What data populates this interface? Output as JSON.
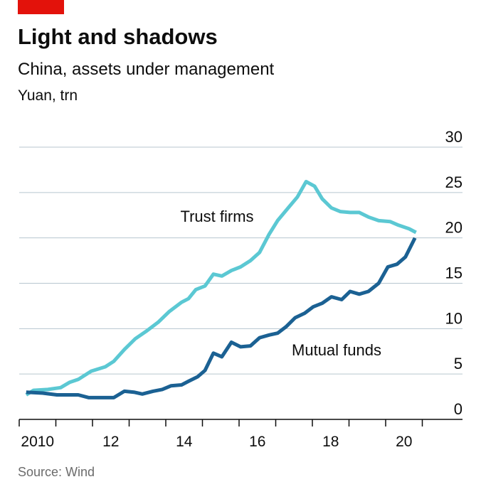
{
  "chart_data": {
    "type": "line",
    "title": "Light and shadows",
    "subtitle": "China, assets under management",
    "unit_label": "Yuan, trn",
    "source": "Source: Wind",
    "xlim": [
      2010,
      2022
    ],
    "xticks": [
      {
        "value": 2010,
        "label": "2010"
      },
      {
        "value": 2012,
        "label": "12"
      },
      {
        "value": 2014,
        "label": "14"
      },
      {
        "value": 2016,
        "label": "16"
      },
      {
        "value": 2018,
        "label": "18"
      },
      {
        "value": 2020,
        "label": "20"
      }
    ],
    "xminor_ticks": [
      2011,
      2013,
      2015,
      2017,
      2019,
      2021
    ],
    "ylim": [
      0,
      30
    ],
    "yticks": [
      0,
      5,
      10,
      15,
      20,
      25,
      30
    ],
    "grid": true,
    "series": [
      {
        "name": "Trust firms",
        "color": "#5bc8d3",
        "x": [
          2010.19,
          2010.39,
          2010.78,
          2011.13,
          2011.38,
          2011.61,
          2011.96,
          2012.35,
          2012.58,
          2012.87,
          2013.17,
          2013.46,
          2013.79,
          2014.1,
          2014.43,
          2014.62,
          2014.82,
          2015.07,
          2015.3,
          2015.53,
          2015.79,
          2016.04,
          2016.31,
          2016.56,
          2016.82,
          2017.05,
          2017.34,
          2017.59,
          2017.83,
          2018.06,
          2018.27,
          2018.52,
          2018.76,
          2019.03,
          2019.28,
          2019.53,
          2019.81,
          2020.12,
          2020.35,
          2020.64,
          2020.83
        ],
        "values": [
          2.7,
          3.2,
          3.3,
          3.5,
          4.1,
          4.4,
          5.3,
          5.8,
          6.4,
          7.7,
          8.9,
          9.7,
          10.7,
          11.9,
          12.9,
          13.3,
          14.3,
          14.7,
          16.0,
          15.8,
          16.4,
          16.8,
          17.5,
          18.4,
          20.4,
          21.9,
          23.3,
          24.5,
          26.2,
          25.7,
          24.3,
          23.3,
          22.9,
          22.8,
          22.8,
          22.3,
          21.9,
          21.8,
          21.4,
          21.0,
          20.6
        ]
      },
      {
        "name": "Mutual funds",
        "color": "#1b6193",
        "x": [
          2010.19,
          2010.64,
          2011.03,
          2011.61,
          2011.9,
          2012.58,
          2012.87,
          2013.13,
          2013.36,
          2013.65,
          2013.9,
          2014.14,
          2014.43,
          2014.62,
          2014.87,
          2015.07,
          2015.3,
          2015.53,
          2015.79,
          2016.04,
          2016.31,
          2016.56,
          2016.82,
          2017.05,
          2017.28,
          2017.53,
          2017.79,
          2018.02,
          2018.27,
          2018.52,
          2018.8,
          2019.03,
          2019.28,
          2019.53,
          2019.81,
          2020.06,
          2020.31,
          2020.54,
          2020.8
        ],
        "values": [
          3.0,
          2.9,
          2.7,
          2.7,
          2.4,
          2.4,
          3.1,
          3.0,
          2.8,
          3.1,
          3.3,
          3.7,
          3.8,
          4.2,
          4.7,
          5.4,
          7.3,
          6.9,
          8.5,
          8.0,
          8.1,
          9.0,
          9.3,
          9.5,
          10.2,
          11.2,
          11.7,
          12.4,
          12.8,
          13.5,
          13.2,
          14.1,
          13.8,
          14.1,
          15.0,
          16.8,
          17.1,
          17.9,
          20.0
        ]
      }
    ]
  }
}
